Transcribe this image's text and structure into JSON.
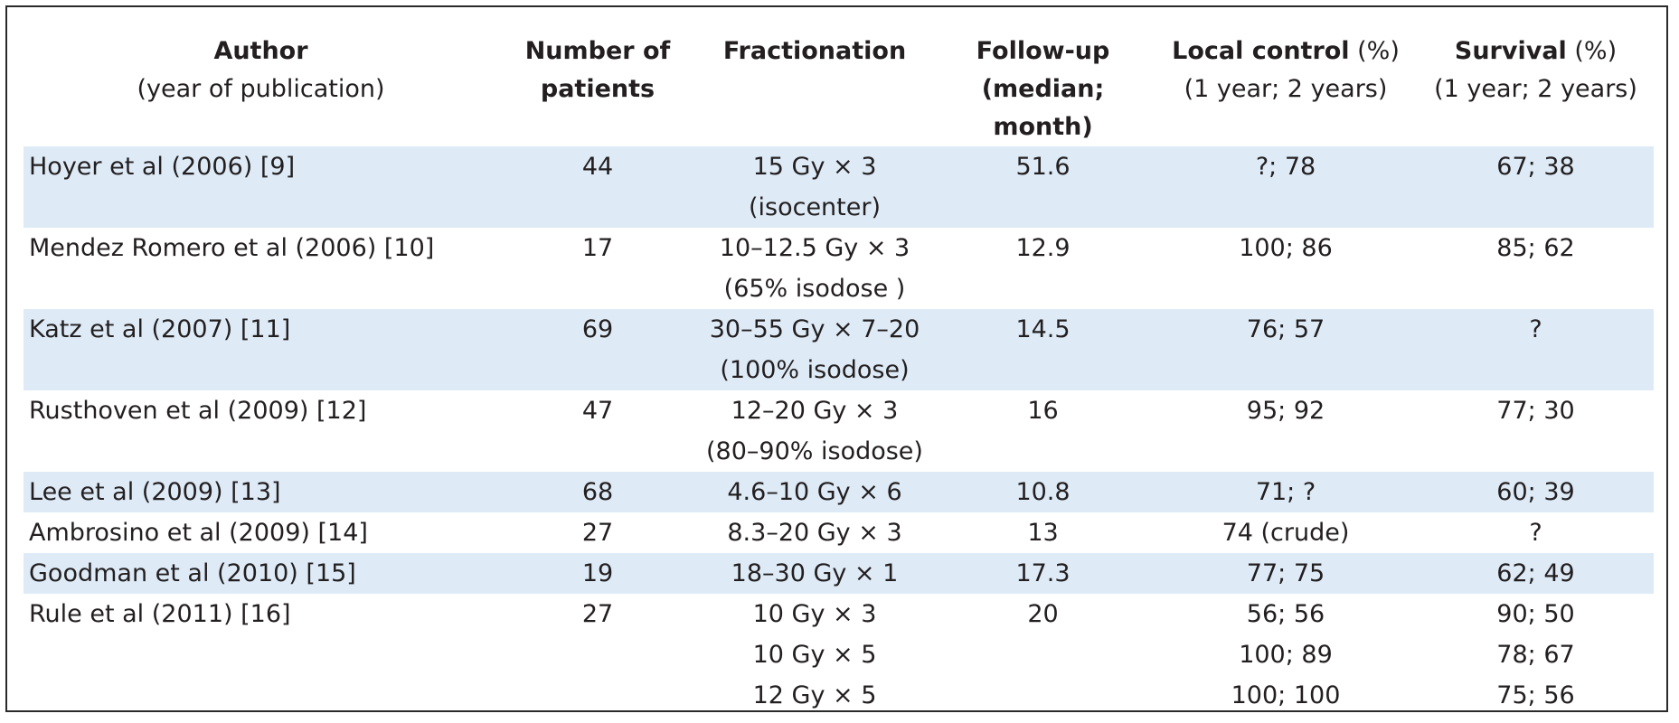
{
  "headers": {
    "author": [
      "Author",
      "(year of publication)"
    ],
    "patients": [
      "Number of",
      "patients"
    ],
    "fractionation": [
      "Fractionation"
    ],
    "followup": [
      "Follow-up",
      "(median; month)"
    ],
    "local_control": {
      "main": "Local control",
      "unit": " (%)",
      "sub": "(1 year; 2 years)"
    },
    "survival": {
      "main": "Survival",
      "unit": " (%)",
      "sub": "(1 year; 2 years)"
    }
  },
  "rows": [
    {
      "author": "Hoyer et al (2006) [9]",
      "patients": "44",
      "fractionation": [
        "15 Gy × 3",
        "(isocenter)"
      ],
      "followup": "51.6",
      "local_control": [
        "?; 78"
      ],
      "survival": [
        "67; 38"
      ],
      "shaded": true
    },
    {
      "author": "Mendez Romero et al (2006) [10]",
      "patients": "17",
      "fractionation": [
        "10–12.5 Gy × 3",
        "(65% isodose )"
      ],
      "followup": "12.9",
      "local_control": [
        "100; 86"
      ],
      "survival": [
        "85; 62"
      ],
      "shaded": false
    },
    {
      "author": "Katz et al (2007) [11]",
      "patients": "69",
      "fractionation": [
        "30–55 Gy × 7–20",
        "(100% isodose)"
      ],
      "followup": "14.5",
      "local_control": [
        "76; 57"
      ],
      "survival": [
        "?"
      ],
      "shaded": true
    },
    {
      "author": "Rusthoven et al (2009) [12]",
      "patients": "47",
      "fractionation": [
        "12–20 Gy × 3",
        "(80–90% isodose)"
      ],
      "followup": "16",
      "local_control": [
        "95; 92"
      ],
      "survival": [
        "77; 30"
      ],
      "shaded": false
    },
    {
      "author": "Lee et al (2009) [13]",
      "patients": "68",
      "fractionation": [
        "4.6–10 Gy × 6"
      ],
      "followup": "10.8",
      "local_control": [
        "71; ?"
      ],
      "survival": [
        "60; 39"
      ],
      "shaded": true
    },
    {
      "author": "Ambrosino et al (2009) [14]",
      "patients": "27",
      "fractionation": [
        "8.3–20 Gy × 3"
      ],
      "followup": "13",
      "local_control": [
        "74 (crude)"
      ],
      "survival": [
        "?"
      ],
      "shaded": false
    },
    {
      "author": "Goodman et al (2010) [15]",
      "patients": "19",
      "fractionation": [
        "18–30 Gy × 1"
      ],
      "followup": "17.3",
      "local_control": [
        "77; 75"
      ],
      "survival": [
        "62; 49"
      ],
      "shaded": true
    },
    {
      "author": "Rule et al (2011) [16]",
      "patients": "27",
      "fractionation": [
        "10 Gy × 3",
        "10 Gy × 5",
        "12 Gy × 5"
      ],
      "followup": "20",
      "local_control": [
        "56; 56",
        "100; 89",
        "100; 100"
      ],
      "survival": [
        "90; 50",
        "78; 67",
        "75; 56"
      ],
      "shaded": false
    }
  ],
  "colors": {
    "row_shade": "#deebf7",
    "text": "#231f20",
    "border": "#2a2a2a"
  }
}
